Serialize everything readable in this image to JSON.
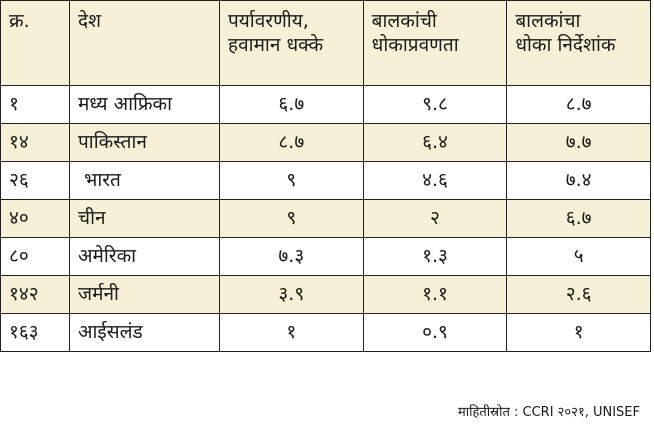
{
  "table": {
    "headers": {
      "num": "क्र.",
      "country": "देश",
      "env_line1": "पर्यावरणीय,",
      "env_line2": "हवामान धक्के",
      "vuln_line1": "बालकांची",
      "vuln_line2": "धोकाप्रवणता",
      "index_line1": "बालकांचा",
      "index_line2": "धोका निर्देशांक"
    },
    "rows": [
      {
        "num": "१",
        "country": "मध्य आफ्रिका",
        "env": "६.७",
        "vuln": "९.८",
        "index": "८.७"
      },
      {
        "num": "१४",
        "country": "पाकिस्तान",
        "env": "८.७",
        "vuln": "६.४",
        "index": "७.७"
      },
      {
        "num": "२६",
        "country": "भारत",
        "env": "९",
        "vuln": "४.६",
        "index": "७.४"
      },
      {
        "num": "४०",
        "country": "चीन",
        "env": "९",
        "vuln": "२",
        "index": "६.७"
      },
      {
        "num": "८०",
        "country": "अमेरिका",
        "env": "७.३",
        "vuln": "१.३",
        "index": "५"
      },
      {
        "num": "१४२",
        "country": "जर्मनी",
        "env": "३.९",
        "vuln": "१.१",
        "index": "२.६"
      },
      {
        "num": "१६३",
        "country": "आईसलंड",
        "env": "१",
        "vuln": "०.९",
        "index": "१"
      }
    ]
  },
  "source": "माहितीस्रोत : CCRI २०२१, UNISEF",
  "colors": {
    "shade": "#f6f1d6",
    "border": "#231f20"
  }
}
